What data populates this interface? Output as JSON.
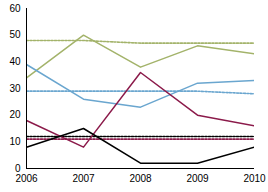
{
  "chart_data": {
    "type": "line",
    "x": [
      2006,
      2007,
      2008,
      2009,
      2010
    ],
    "xlim": [
      2006,
      2010
    ],
    "xticks": [
      2006,
      2007,
      2008,
      2009,
      2010
    ],
    "ylim": [
      0,
      60
    ],
    "yticks": [
      0,
      10,
      20,
      30,
      40,
      50,
      60
    ],
    "grid": false,
    "series": [
      {
        "color": "#a3b36a",
        "line_style": "dotted",
        "values": [
          48,
          48,
          47,
          47,
          47
        ]
      },
      {
        "color": "#6aa6cf",
        "line_style": "dotted",
        "values": [
          29,
          29,
          29,
          29,
          28
        ]
      },
      {
        "color": "#8b1a4a",
        "line_style": "dotted",
        "values": [
          11,
          11,
          11,
          11,
          11
        ]
      },
      {
        "color": "#000000",
        "line_style": "dotted",
        "values": [
          12,
          12,
          12,
          12,
          12
        ]
      },
      {
        "color": "#a3b36a",
        "line_style": "solid",
        "values": [
          34,
          50,
          38,
          46,
          43
        ]
      },
      {
        "color": "#6aa6cf",
        "line_style": "solid",
        "values": [
          39,
          26,
          23,
          32,
          33
        ]
      },
      {
        "color": "#8b1a4a",
        "line_style": "solid",
        "values": [
          18,
          8,
          36,
          20,
          16
        ]
      },
      {
        "color": "#000000",
        "line_style": "solid",
        "values": [
          8,
          15,
          2,
          2,
          8
        ]
      }
    ]
  }
}
